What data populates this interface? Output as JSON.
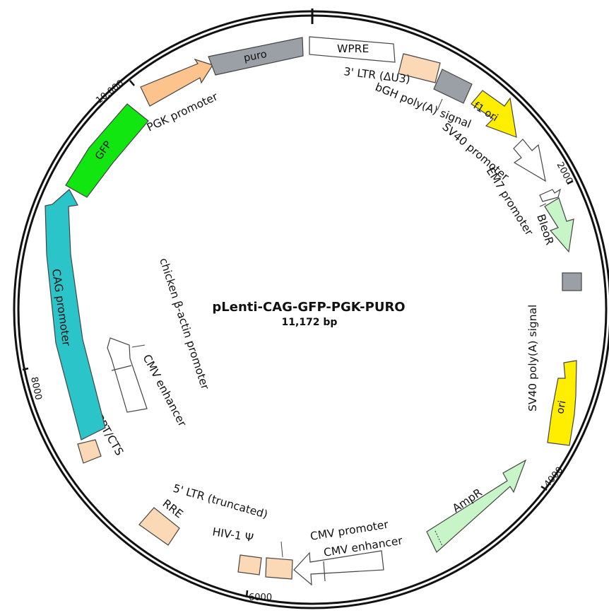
{
  "plasmid": {
    "name": "pLenti-CAG-GFP-PGK-PURO",
    "size_label": "11,172 bp",
    "length_bp": 11172
  },
  "tick_labels": [
    {
      "text": "2000",
      "bp": 2000
    },
    {
      "text": "4000",
      "bp": 4000
    },
    {
      "text": "6000",
      "bp": 6000
    },
    {
      "text": "8000",
      "bp": 8000
    },
    {
      "text": "10,000",
      "bp": 10000
    }
  ],
  "colors": {
    "backbone": "#111111",
    "wpre": "#ffffff",
    "ltr": "#fcd9b6",
    "polyA": "#9aa0a6",
    "f1_ori": "#ffee00",
    "ori": "#ffee00",
    "promoter_open": "#ffffff",
    "bleoR": "#c8f5c8",
    "ampR": "#c8f5c8",
    "cag": "#2bc4c8",
    "gfp": "#11e611",
    "pgk": "#fcc48c",
    "puro": "#9aa0a6",
    "small_feature": "#fcd9b6"
  },
  "features": {
    "wpre": "WPRE",
    "ltr3": "3' LTR (ΔU3)",
    "bgh": "bGH poly(A) signal",
    "f1": "f1 ori",
    "sv40p": "SV40 promoter",
    "em7": "EM7 promoter",
    "bleor": "BleoR",
    "sv40pa": "SV40 poly(A) signal",
    "ori": "ori",
    "ampr": "AmpR",
    "cmvp": "CMV promoter",
    "cmve": "CMV enhancer",
    "hiv": "HIV-1 Ψ",
    "ltr5": "5' LTR (truncated)",
    "rre": "RRE",
    "cppt": "cPPT/CTS",
    "cag": "CAG promoter",
    "gfp": "GFP",
    "pgk": "PGK promoter",
    "puro": "puro",
    "chicken": "chicken β-actin promoter",
    "cmve2": "CMV enhancer"
  }
}
